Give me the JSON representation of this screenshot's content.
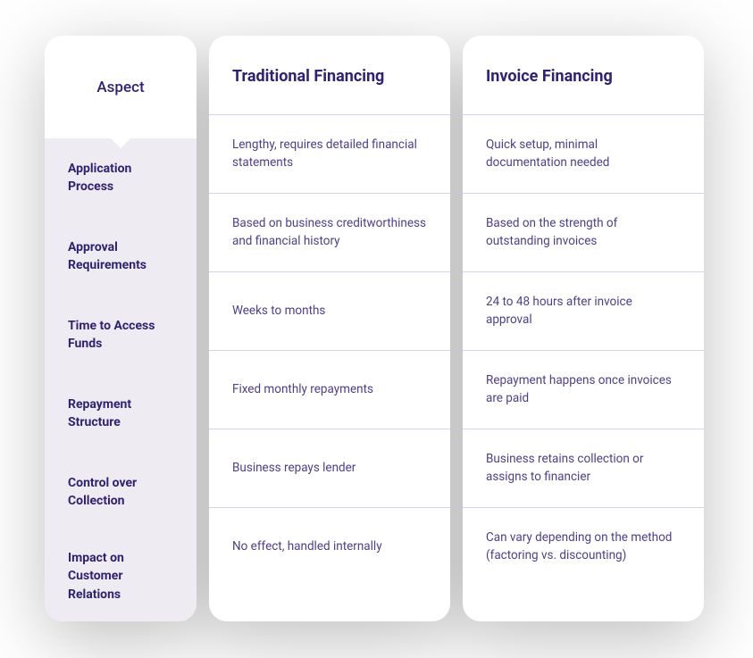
{
  "colors": {
    "heading": "#2e2370",
    "body": "#4f3f86",
    "aspect_bg": "#eeecf2",
    "card_bg": "#ffffff",
    "divider": "#d9cff3"
  },
  "typography": {
    "header_fontsize": 18,
    "header_weight": 700,
    "aspect_label_fontsize": 14,
    "aspect_label_weight": 700,
    "cell_fontsize": 13.5
  },
  "table": {
    "aspect_header": "Aspect",
    "columns": [
      {
        "title": "Traditional Financing"
      },
      {
        "title": "Invoice Financing"
      }
    ],
    "rows": [
      {
        "aspect": "Application Process",
        "cells": [
          "Lengthy, requires detailed financial statements",
          "Quick setup, minimal documentation needed"
        ]
      },
      {
        "aspect": "Approval Requirements",
        "cells": [
          "Based on business creditworthiness and financial history",
          "Based on the strength of outstanding invoices"
        ]
      },
      {
        "aspect": "Time to Access Funds",
        "cells": [
          "Weeks to months",
          "24 to 48 hours after invoice approval"
        ]
      },
      {
        "aspect": "Repayment Structure",
        "cells": [
          "Fixed monthly repayments",
          "Repayment happens once invoices are paid"
        ]
      },
      {
        "aspect": "Control over Collection",
        "cells": [
          "Business repays lender",
          "Business retains collection or assigns to financier"
        ]
      },
      {
        "aspect": "Impact on Customer Relations",
        "cells": [
          "No effect, handled internally",
          "Can vary depending on the method (factoring vs. discounting)"
        ]
      }
    ]
  }
}
